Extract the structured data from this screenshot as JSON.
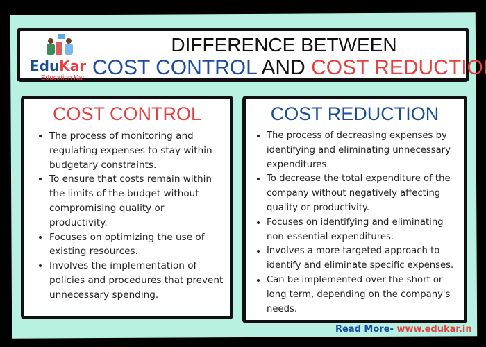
{
  "logo": {
    "name_part1": "Edu",
    "name_part2": "Kar",
    "tagline": "Education Kar"
  },
  "title": {
    "line1": "DIFFERENCE BETWEEN",
    "term1": "COST CONTROL",
    "connector": "AND",
    "term2": "COST REDUCTION"
  },
  "cost_control": {
    "heading": "COST CONTROL",
    "points": [
      "The process of monitoring and regulating expenses to stay within budgetary constraints.",
      "To ensure that costs remain within the limits of the budget without compromising quality or productivity.",
      "Focuses on optimizing the use of existing resources.",
      "Involves the implementation of policies and procedures that prevent unnecessary spending."
    ]
  },
  "cost_reduction": {
    "heading": "COST REDUCTION",
    "points": [
      "The process of decreasing expenses by identifying and eliminating unnecessary expenditures.",
      "To decrease the total expenditure of the company without negatively affecting quality or productivity.",
      "Focuses on identifying and eliminating non-essential expenditures.",
      "Involves a more targeted approach to identify and eliminate specific expenses.",
      "Can be implemented over the short or long term, depending on the company's needs."
    ]
  },
  "footer": {
    "label": "Read More-",
    "link": "www.edukar.in"
  },
  "colors": {
    "blue": "#1a4e9c",
    "red": "#e8403f",
    "mint": "#b8f1e1"
  }
}
